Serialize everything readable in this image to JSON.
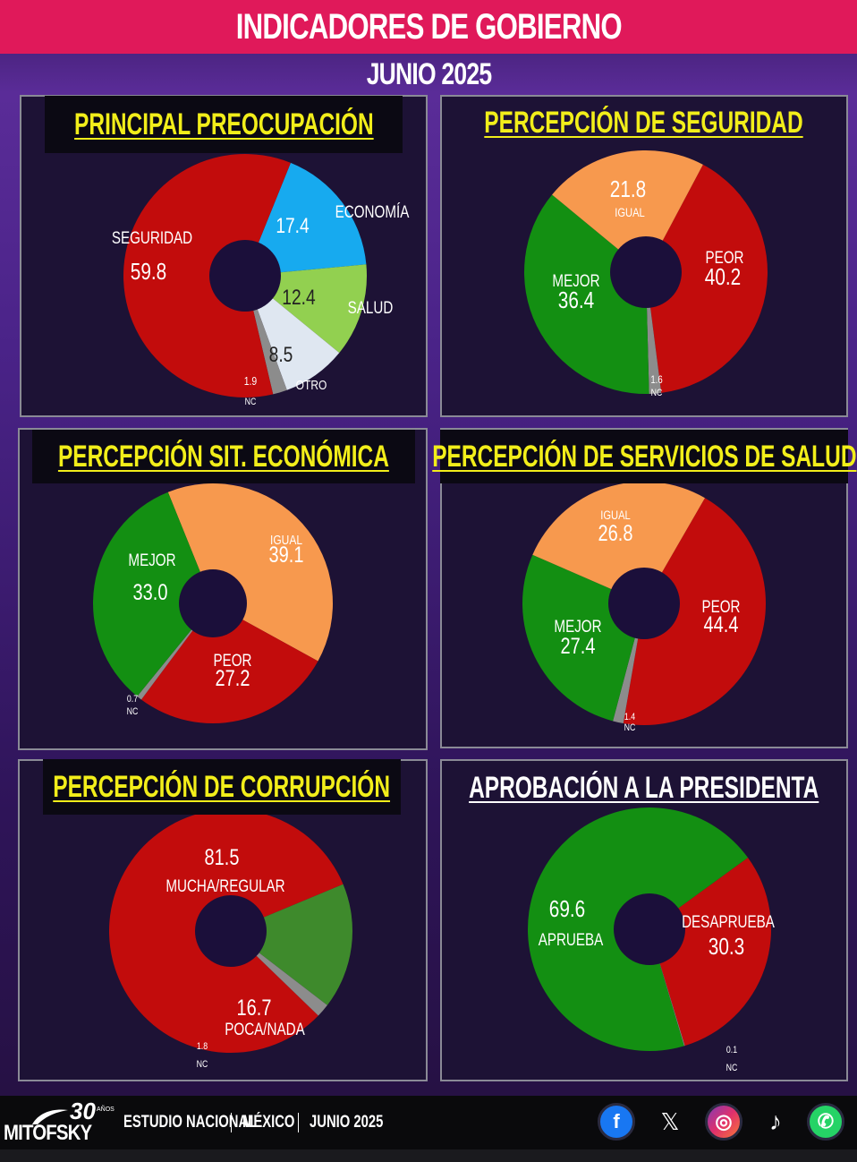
{
  "header": {
    "title": "INDICADORES DE GOBIERNO",
    "subtitle": "JUNIO 2025"
  },
  "colors": {
    "red": "#c20c0c",
    "green": "#138f12",
    "dark_green": "#3e8a2c",
    "orange": "#f7994e",
    "blue": "#17aaef",
    "light_green": "#92d050",
    "light_gray": "#dfe7f1",
    "nc_gray": "#8c8c8c",
    "title_yellow": "#f2ee1a",
    "header_pink": "#e0195a"
  },
  "chart_data": [
    {
      "type": "pie",
      "title": "PRINCIPAL PREOCUPACIÓN",
      "slices": [
        {
          "label": "ECONOMÍA",
          "value": 17.4,
          "value_text": "17.4"
        },
        {
          "label": "SALUD",
          "value": 12.4,
          "value_text": "12.4"
        },
        {
          "label": "OTRO",
          "value": 8.5,
          "value_text": "8.5"
        },
        {
          "label": "NC",
          "value": 1.9,
          "value_text": "1.9"
        },
        {
          "label": "SEGURIDAD",
          "value": 59.8,
          "value_text": "59.8"
        }
      ]
    },
    {
      "type": "pie",
      "title": "PERCEPCIÓN DE SEGURIDAD",
      "slices": [
        {
          "label": "PEOR",
          "value": 40.2,
          "value_text": "40.2"
        },
        {
          "label": "NC",
          "value": 1.6,
          "value_text": "1.6"
        },
        {
          "label": "MEJOR",
          "value": 36.4,
          "value_text": "36.4"
        },
        {
          "label": "IGUAL",
          "value": 21.8,
          "value_text": "21.8"
        }
      ]
    },
    {
      "type": "pie",
      "title": "PERCEPCIÓN SIT. ECONÓMICA",
      "slices": [
        {
          "label": "IGUAL",
          "value": 39.1,
          "value_text": "39.1"
        },
        {
          "label": "PEOR",
          "value": 27.2,
          "value_text": "27.2"
        },
        {
          "label": "NC",
          "value": 0.7,
          "value_text": "0.7"
        },
        {
          "label": "MEJOR",
          "value": 33.0,
          "value_text": "33.0"
        }
      ]
    },
    {
      "type": "pie",
      "title": "PERCEPCIÓN DE SERVICIOS DE SALUD",
      "slices": [
        {
          "label": "PEOR",
          "value": 44.4,
          "value_text": "44.4"
        },
        {
          "label": "NC",
          "value": 1.4,
          "value_text": "1.4"
        },
        {
          "label": "MEJOR",
          "value": 27.4,
          "value_text": "27.4"
        },
        {
          "label": "IGUAL",
          "value": 26.8,
          "value_text": "26.8"
        }
      ]
    },
    {
      "type": "pie",
      "title": "PERCEPCIÓN DE CORRUPCIÓN",
      "slices": [
        {
          "label": "MUCHA/REGULAR",
          "value": 81.5,
          "value_text": "81.5"
        },
        {
          "label": "POCA/NADA",
          "value": 16.7,
          "value_text": "16.7"
        },
        {
          "label": "NC",
          "value": 1.8,
          "value_text": "1.8"
        }
      ]
    },
    {
      "type": "pie",
      "title": "APROBACIÓN A LA PRESIDENTA",
      "slices": [
        {
          "label": "DESAPRUEBA",
          "value": 30.3,
          "value_text": "30.3"
        },
        {
          "label": "NC",
          "value": 0.1,
          "value_text": "0.1"
        },
        {
          "label": "APRUEBA",
          "value": 69.6,
          "value_text": "69.6"
        }
      ]
    }
  ],
  "footer": {
    "logo_name": "MITOFSKY",
    "logo_years": "30",
    "logo_years_word": "AÑOS",
    "items": [
      "ESTUDIO NACIONAL",
      "MÉXICO",
      "JUNIO 2025"
    ],
    "social": [
      {
        "name": "facebook-icon",
        "glyph": "f",
        "color": "#1877f2"
      },
      {
        "name": "x-icon",
        "glyph": "𝕏",
        "color": "#000000"
      },
      {
        "name": "instagram-icon",
        "glyph": "◎",
        "color": "#d6249f"
      },
      {
        "name": "tiktok-icon",
        "glyph": "♪",
        "color": "#000000"
      },
      {
        "name": "whatsapp-icon",
        "glyph": "✆",
        "color": "#25d366"
      }
    ]
  }
}
